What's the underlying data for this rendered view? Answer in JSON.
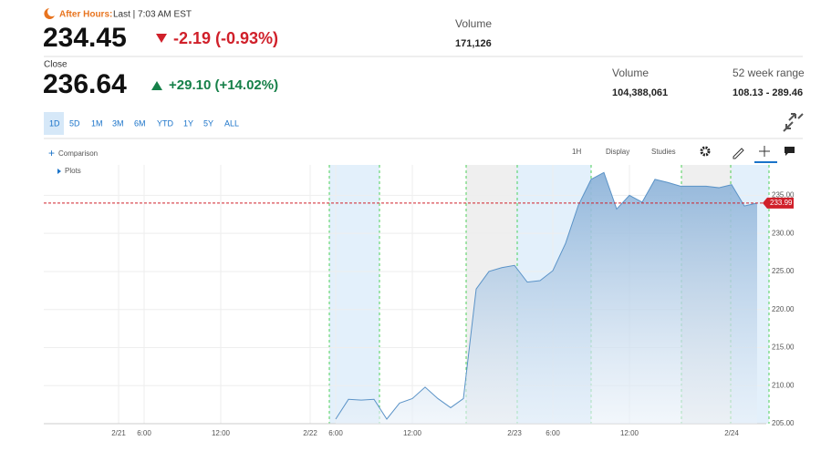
{
  "quote": {
    "after_hours_label": "After Hours:",
    "after_hours_time": "Last | 7:03 AM EST",
    "after_hours_price": "234.45",
    "after_hours_change": "-2.19 (-0.93%)",
    "after_hours_volume_label": "Volume",
    "after_hours_volume": "171,126",
    "close_label": "Close",
    "close_price": "236.64",
    "close_change": "+29.10 (+14.02%)",
    "volume_label": "Volume",
    "volume": "104,388,061",
    "range_label": "52 week range",
    "range": "108.13 - 289.46"
  },
  "ranges": [
    "1D",
    "5D",
    "1M",
    "3M",
    "6M",
    "YTD",
    "1Y",
    "5Y",
    "ALL"
  ],
  "toolbar": {
    "comparison": "Comparison",
    "interval": "1H",
    "display": "Display",
    "studies": "Studies",
    "plots": "Plots"
  },
  "chart_data": {
    "type": "area",
    "color": "#5b93c7",
    "categories": [
      "2/21",
      null,
      "6:00",
      null,
      null,
      null,
      null,
      null,
      "12:00",
      null,
      null,
      null,
      null,
      null,
      null,
      "2/22",
      null,
      "6:00",
      null,
      null,
      null,
      null,
      null,
      "12:00",
      null,
      null,
      null,
      null,
      null,
      null,
      null,
      "2/23",
      null,
      null,
      "6:00",
      null,
      null,
      null,
      null,
      null,
      "12:00",
      null,
      null,
      null,
      null,
      null,
      null,
      null,
      "2/24",
      null,
      null
    ],
    "values": [
      null,
      null,
      null,
      null,
      null,
      null,
      null,
      null,
      null,
      null,
      null,
      null,
      null,
      null,
      null,
      null,
      null,
      205.6,
      208.2,
      208.1,
      208.2,
      205.6,
      207.7,
      208.3,
      209.8,
      208.3,
      207.1,
      208.3,
      222.7,
      225.0,
      225.5,
      225.8,
      223.6,
      223.8,
      225.1,
      228.7,
      233.7,
      237.1,
      238.0,
      233.2,
      235.0,
      234.1,
      237.1,
      236.7,
      236.2,
      236.2,
      236.2,
      236.0,
      236.4,
      233.6,
      233.99
    ],
    "ylim": [
      205,
      239
    ],
    "yticks": [
      {
        "value": 205,
        "label": "205.00"
      },
      {
        "value": 210,
        "label": "210.00"
      },
      {
        "value": 215,
        "label": "215.00"
      },
      {
        "value": 220,
        "label": "220.00"
      },
      {
        "value": 225,
        "label": "225.00"
      },
      {
        "value": 230,
        "label": "230.00"
      },
      {
        "value": 235,
        "label": "235.00"
      }
    ],
    "grid": true
  }
}
